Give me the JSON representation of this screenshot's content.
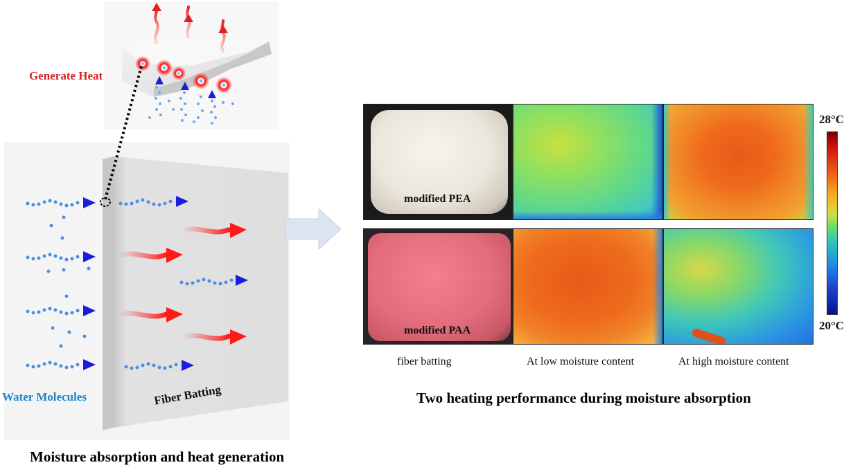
{
  "diagram": {
    "left_panel": {
      "callout_label": "Generate Heat",
      "molecules_label": "Water Molecules",
      "batting_label": "Fiber Batting",
      "caption": "Moisture absorption and heat generation"
    },
    "right_panel": {
      "samples": [
        {
          "label": "modified PEA",
          "photo_color": "#e9e5dc"
        },
        {
          "label": "modified PAA",
          "photo_color": "#e76f80"
        }
      ],
      "columns": [
        "fiber batting",
        "At low moisture content",
        "At high moisture content"
      ],
      "colorbar": {
        "max": "28°C",
        "min": "20°C"
      },
      "caption": "Two heating performance during moisture absorption"
    },
    "colors": {
      "heat_red": "#d42424",
      "water_blue": "#1a86c8",
      "arrow_blue": "#1c1cdc",
      "flow_arrow": "#dbe4f0"
    }
  }
}
